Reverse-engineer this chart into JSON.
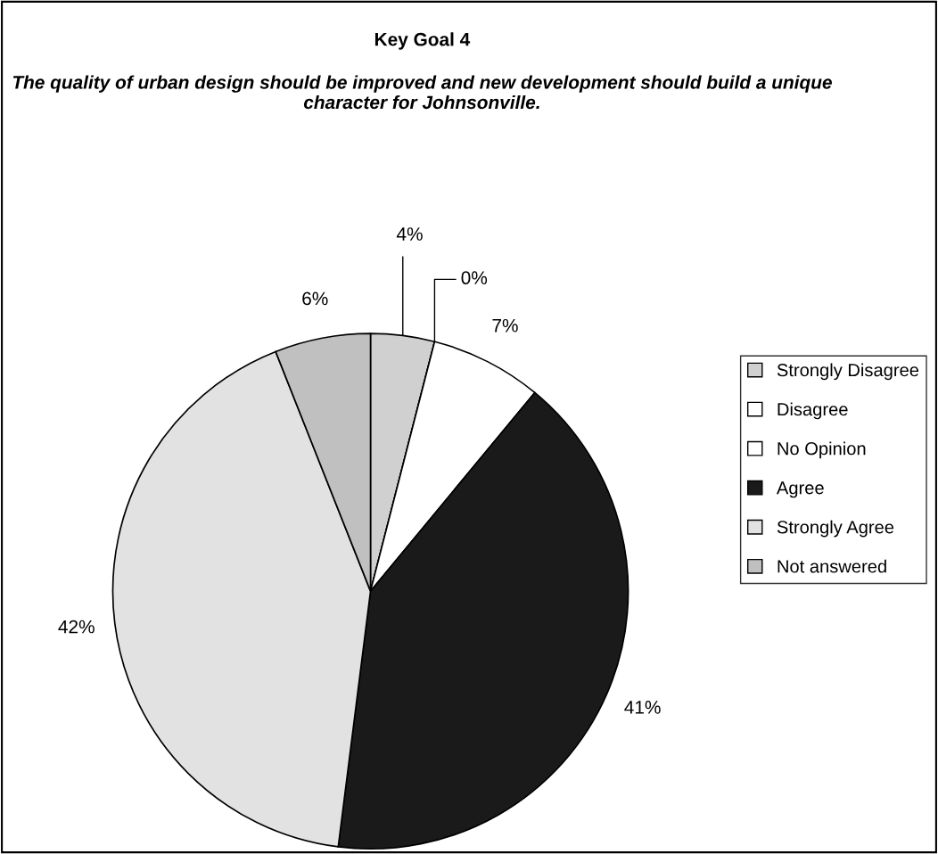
{
  "chart_data": {
    "type": "pie",
    "title": "Key Goal 4",
    "subtitle": "The quality of urban design should be improved and new development should build a unique character for Johnsonville.",
    "categories": [
      "Strongly Disagree",
      "Disagree",
      "No Opinion",
      "Agree",
      "Strongly Agree",
      "Not answered"
    ],
    "values": [
      4,
      0,
      7,
      41,
      42,
      6
    ],
    "value_labels": [
      "4%",
      "0%",
      "7%",
      "41%",
      "42%",
      "6%"
    ],
    "colors": [
      "#d0d0d0",
      "#ffffff",
      "#ffffff",
      "#1a1a1a",
      "#e2e2e2",
      "#c0c0c0"
    ],
    "legend": "right"
  }
}
